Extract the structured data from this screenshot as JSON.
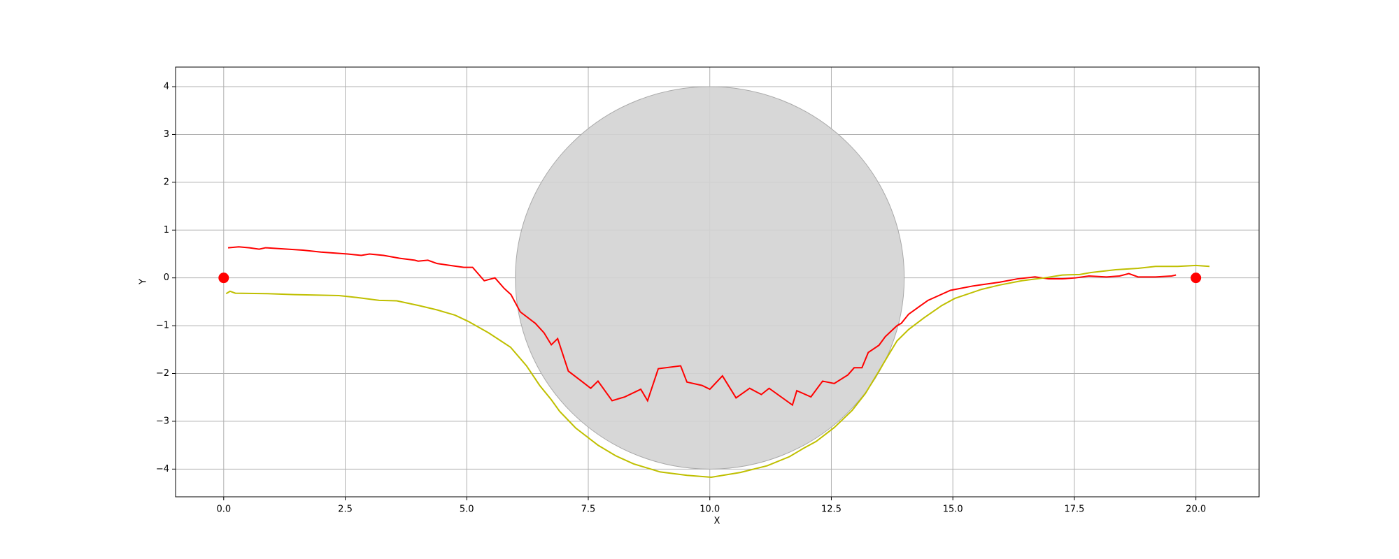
{
  "chart_data": {
    "type": "line",
    "xlabel": "X",
    "ylabel": "Y",
    "xlim": [
      -0.99,
      21.3
    ],
    "ylim": [
      -4.58,
      4.41
    ],
    "xticks": [
      {
        "value": 0,
        "label": "0.0"
      },
      2.5,
      {
        "value": 5,
        "label": "5.0"
      },
      7.5,
      {
        "value": 10,
        "label": "10.0"
      },
      12.5,
      {
        "value": 15,
        "label": "15.0"
      },
      17.5,
      {
        "value": 20,
        "label": "20.0"
      }
    ],
    "yticks": [
      {
        "value": -4,
        "label": "−4"
      },
      {
        "value": -3,
        "label": "−3"
      },
      {
        "value": -2,
        "label": "−2"
      },
      {
        "value": -1,
        "label": "−1"
      },
      0,
      1,
      2,
      3,
      4
    ],
    "grid": true,
    "obstacle": {
      "center_x": 10,
      "center_y": 0,
      "radius": 4,
      "color": "#d3d3d3"
    },
    "endpoints": {
      "x": [
        0,
        20
      ],
      "values": [
        0,
        0
      ],
      "color": "#ff0000"
    },
    "series": [
      {
        "color": "#ff0000",
        "x": [
          0.09,
          0.31,
          0.53,
          0.73,
          0.86,
          1.18,
          1.63,
          2.0,
          2.55,
          2.83,
          3.0,
          3.29,
          3.62,
          3.93,
          4.0,
          4.2,
          4.39,
          4.66,
          4.94,
          5.12,
          5.36,
          5.58,
          5.77,
          5.91,
          6.1,
          6.41,
          6.59,
          6.74,
          6.87,
          7.09,
          7.36,
          7.55,
          7.7,
          7.99,
          8.25,
          8.58,
          8.72,
          8.94,
          9.4,
          9.53,
          9.84,
          10.0,
          10.26,
          10.54,
          10.82,
          11.06,
          11.22,
          11.7,
          11.79,
          12.08,
          12.32,
          12.56,
          12.84,
          12.97,
          13.13,
          13.26,
          13.48,
          13.61,
          13.85,
          13.94,
          14.09,
          14.31,
          14.49,
          14.71,
          14.95,
          15.41,
          15.96,
          16.33,
          16.69,
          16.97,
          17.25,
          17.52,
          17.8,
          18.16,
          18.43,
          18.62,
          18.81,
          19.17,
          19.5,
          19.59
        ],
        "values": [
          0.63,
          0.65,
          0.63,
          0.6,
          0.63,
          0.61,
          0.58,
          0.54,
          0.5,
          0.47,
          0.5,
          0.47,
          0.41,
          0.37,
          0.35,
          0.37,
          0.3,
          0.26,
          0.22,
          0.22,
          -0.06,
          0.0,
          -0.22,
          -0.35,
          -0.71,
          -0.95,
          -1.15,
          -1.4,
          -1.27,
          -1.95,
          -2.16,
          -2.31,
          -2.16,
          -2.57,
          -2.49,
          -2.33,
          -2.57,
          -1.9,
          -1.84,
          -2.18,
          -2.25,
          -2.33,
          -2.05,
          -2.51,
          -2.31,
          -2.44,
          -2.31,
          -2.66,
          -2.36,
          -2.49,
          -2.16,
          -2.21,
          -2.03,
          -1.88,
          -1.88,
          -1.56,
          -1.41,
          -1.23,
          -1.0,
          -0.95,
          -0.76,
          -0.6,
          -0.47,
          -0.37,
          -0.26,
          -0.17,
          -0.09,
          -0.02,
          0.02,
          -0.02,
          -0.02,
          0.0,
          0.04,
          0.02,
          0.04,
          0.09,
          0.02,
          0.02,
          0.04,
          0.06
        ]
      },
      {
        "color": "#bfbf00",
        "x": [
          0.05,
          0.13,
          0.24,
          0.9,
          1.45,
          2.37,
          2.74,
          3.2,
          3.56,
          4.02,
          4.39,
          4.76,
          5.03,
          5.45,
          5.9,
          6.23,
          6.5,
          6.74,
          6.91,
          7.24,
          7.7,
          8.06,
          8.43,
          8.98,
          9.53,
          10.03,
          10.63,
          11.18,
          11.64,
          11.92,
          12.19,
          12.56,
          12.93,
          13.2,
          13.48,
          13.66,
          13.85,
          14.09,
          14.4,
          14.77,
          15.04,
          15.59,
          15.96,
          16.42,
          16.88,
          17.25,
          17.61,
          17.83,
          18.35,
          18.81,
          19.17,
          19.63,
          20.0,
          20.28
        ],
        "values": [
          -0.33,
          -0.28,
          -0.32,
          -0.33,
          -0.35,
          -0.37,
          -0.41,
          -0.47,
          -0.48,
          -0.58,
          -0.67,
          -0.78,
          -0.91,
          -1.15,
          -1.45,
          -1.84,
          -2.25,
          -2.55,
          -2.79,
          -3.14,
          -3.5,
          -3.72,
          -3.89,
          -4.06,
          -4.13,
          -4.17,
          -4.07,
          -3.93,
          -3.74,
          -3.57,
          -3.42,
          -3.13,
          -2.77,
          -2.42,
          -1.95,
          -1.64,
          -1.32,
          -1.08,
          -0.84,
          -0.58,
          -0.43,
          -0.24,
          -0.15,
          -0.06,
          0.0,
          0.06,
          0.07,
          0.11,
          0.17,
          0.2,
          0.24,
          0.24,
          0.26,
          0.24
        ]
      }
    ]
  }
}
